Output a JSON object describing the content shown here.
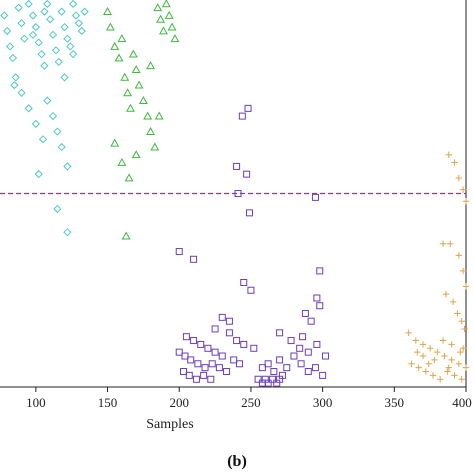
{
  "chart_data": {
    "type": "scatter",
    "xlabel": "Samples",
    "caption": "(b)",
    "xlim": [
      75,
      400
    ],
    "ylim": [
      0,
      100
    ],
    "xticks": [
      100,
      150,
      200,
      250,
      300,
      350,
      400
    ],
    "threshold": 50,
    "threshold_color": "#8B3A8B",
    "series": [
      {
        "marker": "diamond",
        "color": "#4EC9C9",
        "points": [
          [
            78,
            96
          ],
          [
            80,
            92
          ],
          [
            82,
            88
          ],
          [
            84,
            85
          ],
          [
            86,
            80
          ],
          [
            88,
            98
          ],
          [
            90,
            94
          ],
          [
            92,
            90
          ],
          [
            95,
            99
          ],
          [
            98,
            96
          ],
          [
            100,
            93
          ],
          [
            102,
            89
          ],
          [
            104,
            86
          ],
          [
            106,
            83
          ],
          [
            108,
            99
          ],
          [
            110,
            95
          ],
          [
            112,
            91
          ],
          [
            114,
            87
          ],
          [
            116,
            84
          ],
          [
            118,
            97
          ],
          [
            120,
            93
          ],
          [
            122,
            90
          ],
          [
            124,
            88
          ],
          [
            126,
            99
          ],
          [
            128,
            96
          ],
          [
            130,
            94
          ],
          [
            132,
            92
          ],
          [
            134,
            97
          ],
          [
            90,
            76
          ],
          [
            95,
            72
          ],
          [
            100,
            68
          ],
          [
            105,
            64
          ],
          [
            108,
            74
          ],
          [
            112,
            70
          ],
          [
            115,
            66
          ],
          [
            118,
            62
          ],
          [
            120,
            80
          ],
          [
            122,
            57
          ],
          [
            85,
            78
          ],
          [
            102,
            55
          ],
          [
            115,
            46
          ],
          [
            122,
            40
          ],
          [
            98,
            91
          ],
          [
            106,
            97
          ],
          [
            126,
            86
          ]
        ]
      },
      {
        "marker": "triangle",
        "color": "#3DBA3D",
        "points": [
          [
            150,
            97
          ],
          [
            152,
            93
          ],
          [
            155,
            88
          ],
          [
            158,
            85
          ],
          [
            160,
            90
          ],
          [
            162,
            80
          ],
          [
            164,
            76
          ],
          [
            166,
            72
          ],
          [
            168,
            86
          ],
          [
            170,
            82
          ],
          [
            172,
            78
          ],
          [
            175,
            74
          ],
          [
            178,
            70
          ],
          [
            180,
            66
          ],
          [
            183,
            62
          ],
          [
            185,
            98
          ],
          [
            187,
            95
          ],
          [
            189,
            92
          ],
          [
            191,
            99
          ],
          [
            193,
            96
          ],
          [
            195,
            93
          ],
          [
            197,
            90
          ],
          [
            155,
            63
          ],
          [
            160,
            58
          ],
          [
            165,
            54
          ],
          [
            170,
            60
          ],
          [
            163,
            39
          ],
          [
            180,
            83
          ],
          [
            186,
            70
          ]
        ]
      },
      {
        "marker": "square",
        "color": "#6A3DC4",
        "points": [
          [
            248,
            72
          ],
          [
            244,
            70
          ],
          [
            240,
            57
          ],
          [
            247,
            55
          ],
          [
            241,
            50
          ],
          [
            249,
            45
          ],
          [
            295,
            49
          ],
          [
            200,
            35
          ],
          [
            210,
            33
          ],
          [
            298,
            30
          ],
          [
            250,
            25
          ],
          [
            245,
            27
          ],
          [
            296,
            23
          ],
          [
            298,
            21
          ],
          [
            288,
            19
          ],
          [
            292,
            17
          ],
          [
            230,
            18
          ],
          [
            235,
            17
          ],
          [
            205,
            13
          ],
          [
            210,
            12
          ],
          [
            215,
            11
          ],
          [
            220,
            10
          ],
          [
            225,
            9
          ],
          [
            230,
            8
          ],
          [
            235,
            14
          ],
          [
            240,
            12
          ],
          [
            245,
            11
          ],
          [
            208,
            7
          ],
          [
            213,
            6
          ],
          [
            218,
            5
          ],
          [
            223,
            6
          ],
          [
            228,
            5
          ],
          [
            233,
            4
          ],
          [
            238,
            7
          ],
          [
            242,
            6
          ],
          [
            203,
            4
          ],
          [
            207,
            3
          ],
          [
            212,
            2
          ],
          [
            217,
            3
          ],
          [
            222,
            2
          ],
          [
            255,
            2
          ],
          [
            258,
            1
          ],
          [
            260,
            2
          ],
          [
            262,
            1
          ],
          [
            265,
            2
          ],
          [
            268,
            1
          ],
          [
            270,
            2
          ],
          [
            272,
            3
          ],
          [
            258,
            5
          ],
          [
            262,
            6
          ],
          [
            266,
            4
          ],
          [
            270,
            7
          ],
          [
            275,
            5
          ],
          [
            280,
            8
          ],
          [
            285,
            6
          ],
          [
            290,
            4
          ],
          [
            295,
            5
          ],
          [
            300,
            3
          ],
          [
            278,
            12
          ],
          [
            284,
            10
          ],
          [
            290,
            9
          ],
          [
            296,
            11
          ],
          [
            302,
            8
          ],
          [
            270,
            14
          ],
          [
            200,
            9
          ],
          [
            204,
            8
          ],
          [
            225,
            15
          ],
          [
            252,
            10
          ],
          [
            286,
            13
          ]
        ]
      },
      {
        "marker": "plus",
        "color": "#E0A54A",
        "points": [
          [
            388,
            60
          ],
          [
            392,
            58
          ],
          [
            395,
            54
          ],
          [
            398,
            51
          ],
          [
            400,
            48
          ],
          [
            384,
            37
          ],
          [
            389,
            37
          ],
          [
            395,
            34
          ],
          [
            398,
            30
          ],
          [
            400,
            26
          ],
          [
            386,
            24
          ],
          [
            391,
            22
          ],
          [
            394,
            19
          ],
          [
            397,
            17
          ],
          [
            399,
            15
          ],
          [
            360,
            14
          ],
          [
            365,
            12
          ],
          [
            370,
            11
          ],
          [
            375,
            10
          ],
          [
            380,
            9
          ],
          [
            385,
            8
          ],
          [
            390,
            7
          ],
          [
            395,
            6
          ],
          [
            400,
            5
          ],
          [
            362,
            6
          ],
          [
            367,
            5
          ],
          [
            372,
            4
          ],
          [
            377,
            3
          ],
          [
            382,
            2
          ],
          [
            387,
            4
          ],
          [
            392,
            3
          ],
          [
            397,
            2
          ],
          [
            370,
            8
          ],
          [
            378,
            7
          ],
          [
            384,
            12
          ],
          [
            390,
            11
          ],
          [
            396,
            9
          ],
          [
            366,
            9
          ],
          [
            374,
            6
          ],
          [
            388,
            5
          ],
          [
            398,
            10
          ]
        ]
      }
    ]
  }
}
